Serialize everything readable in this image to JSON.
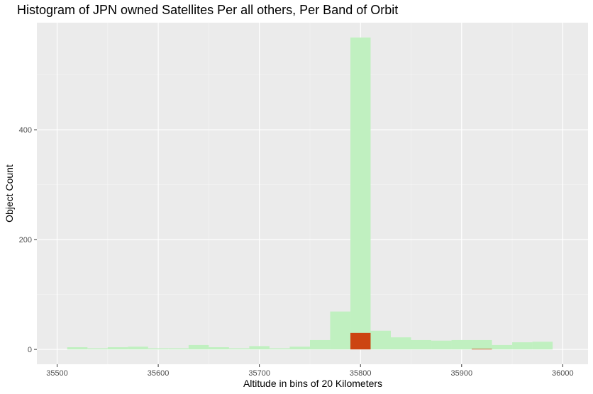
{
  "chart_data": {
    "type": "bar",
    "title": "Histogram of JPN owned Satellites Per all others, Per Band of Orbit",
    "xlabel": "Altitude in bins of 20 Kilometers",
    "ylabel": "Object Count",
    "xlim": [
      35480,
      36025
    ],
    "ylim": [
      -27,
      595
    ],
    "x_ticks": [
      35500,
      35600,
      35700,
      35800,
      35900,
      36000
    ],
    "y_ticks": [
      0,
      200,
      400
    ],
    "bin_width": 20,
    "grid": true,
    "legend": "none",
    "series": [
      {
        "color": "#c0f0c0",
        "bins": [
          {
            "x": 35520,
            "value": 4
          },
          {
            "x": 35540,
            "value": 2
          },
          {
            "x": 35560,
            "value": 4
          },
          {
            "x": 35580,
            "value": 5
          },
          {
            "x": 35600,
            "value": 2
          },
          {
            "x": 35620,
            "value": 2
          },
          {
            "x": 35640,
            "value": 8
          },
          {
            "x": 35660,
            "value": 4
          },
          {
            "x": 35680,
            "value": 2
          },
          {
            "x": 35700,
            "value": 6
          },
          {
            "x": 35720,
            "value": 2
          },
          {
            "x": 35740,
            "value": 5
          },
          {
            "x": 35760,
            "value": 17
          },
          {
            "x": 35780,
            "value": 69
          },
          {
            "x": 35800,
            "value": 568
          },
          {
            "x": 35820,
            "value": 34
          },
          {
            "x": 35840,
            "value": 22
          },
          {
            "x": 35860,
            "value": 17
          },
          {
            "x": 35880,
            "value": 16
          },
          {
            "x": 35900,
            "value": 17
          },
          {
            "x": 35920,
            "value": 17
          },
          {
            "x": 35940,
            "value": 8
          },
          {
            "x": 35960,
            "value": 13
          },
          {
            "x": 35980,
            "value": 14
          }
        ]
      },
      {
        "color": "#cc4411",
        "bins": [
          {
            "x": 35800,
            "value": 30
          },
          {
            "x": 35920,
            "value": 1
          }
        ]
      }
    ]
  }
}
